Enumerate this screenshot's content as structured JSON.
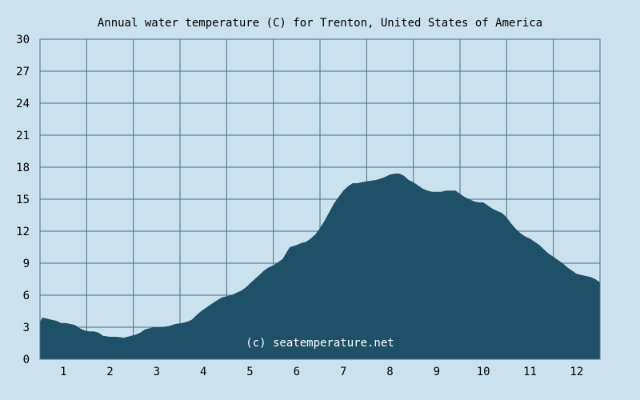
{
  "chart_data": {
    "type": "area",
    "title": "Annual water temperature (C) for Trenton, United States of America",
    "xlabel": "",
    "ylabel": "",
    "x_tick_labels": [
      "1",
      "2",
      "3",
      "4",
      "5",
      "6",
      "7",
      "8",
      "9",
      "10",
      "11",
      "12"
    ],
    "y_ticks": [
      0,
      3,
      6,
      9,
      12,
      15,
      18,
      21,
      24,
      27,
      30
    ],
    "ylim": [
      0,
      30
    ],
    "xlim": [
      0.5,
      12.5
    ],
    "grid": true,
    "legend": "none",
    "watermark": "(c) seatemperature.net",
    "colors": {
      "background": "#cbe1ee",
      "fill": "#1e5068",
      "grid": "#4a6a80",
      "frame": "#4a6a80"
    },
    "series": [
      {
        "x": [
          0.5,
          0.55,
          0.65,
          0.75,
          0.85,
          0.95,
          1.05,
          1.15,
          1.25,
          1.35,
          1.45,
          1.55,
          1.65,
          1.75,
          1.85,
          2.0,
          2.15,
          2.3,
          2.45,
          2.55,
          2.65,
          2.75,
          2.85,
          2.95,
          3.1,
          3.25,
          3.4,
          3.55,
          3.65,
          3.75,
          3.85,
          3.95,
          4.05,
          4.15,
          4.25,
          4.4,
          4.5,
          4.6,
          4.7,
          4.8,
          4.9,
          5.0,
          5.1,
          5.2,
          5.3,
          5.4,
          5.5,
          5.6,
          5.7,
          5.85,
          6.0,
          6.1,
          6.2,
          6.3,
          6.4,
          6.5,
          6.6,
          6.7,
          6.8,
          6.9,
          7.0,
          7.1,
          7.2,
          7.3,
          7.4,
          7.55,
          7.7,
          7.85,
          8.0,
          8.1,
          8.2,
          8.3,
          8.4,
          8.5,
          8.6,
          8.7,
          8.8,
          8.9,
          9.0,
          9.1,
          9.2,
          9.3,
          9.4,
          9.5,
          9.6,
          9.7,
          9.8,
          9.9,
          10.0,
          10.1,
          10.2,
          10.3,
          10.4,
          10.5,
          10.6,
          10.7,
          10.8,
          10.9,
          11.0,
          11.1,
          11.2,
          11.3,
          11.4,
          11.5,
          11.6,
          11.7,
          11.8,
          11.9,
          12.0,
          12.1,
          12.2,
          12.3,
          12.4,
          12.5
        ],
        "values": [
          3.5,
          3.9,
          3.8,
          3.7,
          3.6,
          3.4,
          3.4,
          3.3,
          3.2,
          2.9,
          2.7,
          2.6,
          2.6,
          2.5,
          2.2,
          2.1,
          2.1,
          2.0,
          2.2,
          2.3,
          2.5,
          2.8,
          2.9,
          3.0,
          3.0,
          3.1,
          3.3,
          3.4,
          3.5,
          3.7,
          4.1,
          4.5,
          4.8,
          5.1,
          5.4,
          5.8,
          5.9,
          6.0,
          6.2,
          6.4,
          6.7,
          7.1,
          7.5,
          7.9,
          8.3,
          8.6,
          8.8,
          9.1,
          9.4,
          10.5,
          10.7,
          10.9,
          11.0,
          11.3,
          11.7,
          12.3,
          13.0,
          13.8,
          14.6,
          15.2,
          15.8,
          16.2,
          16.5,
          16.5,
          16.6,
          16.7,
          16.8,
          17.0,
          17.3,
          17.4,
          17.4,
          17.2,
          16.8,
          16.6,
          16.3,
          16.0,
          15.8,
          15.7,
          15.7,
          15.7,
          15.8,
          15.8,
          15.8,
          15.5,
          15.2,
          15.0,
          14.8,
          14.7,
          14.7,
          14.4,
          14.1,
          13.9,
          13.7,
          13.3,
          12.7,
          12.2,
          11.8,
          11.5,
          11.3,
          11.0,
          10.7,
          10.3,
          9.9,
          9.6,
          9.3,
          9.0,
          8.6,
          8.3,
          8.0,
          7.9,
          7.8,
          7.7,
          7.5,
          7.2
        ]
      }
    ]
  }
}
